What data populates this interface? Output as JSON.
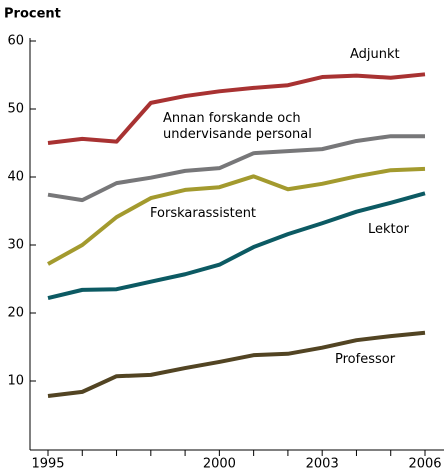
{
  "chart_data": {
    "type": "line",
    "y_label": "Procent",
    "x": [
      1995,
      1996,
      1997,
      1998,
      1999,
      2000,
      2001,
      2002,
      2003,
      2004,
      2005,
      2006
    ],
    "xlim": [
      1995,
      2006
    ],
    "xticks": [
      1995,
      2000,
      2003,
      2006
    ],
    "ylim": [
      0,
      60
    ],
    "yticks": [
      10,
      20,
      30,
      40,
      50,
      60
    ],
    "series": [
      {
        "name": "Adjunkt",
        "color": "#a83232",
        "values": [
          45,
          45.6,
          45.2,
          50.9,
          51.9,
          52.6,
          53.1,
          53.5,
          54.7,
          54.9,
          54.6,
          55.1
        ]
      },
      {
        "name": "Annan forskande och undervisande personal",
        "color": "#777779",
        "values": [
          37.4,
          36.6,
          39.1,
          39.9,
          40.9,
          41.3,
          43.5,
          43.8,
          44.1,
          45.3,
          46,
          46
        ]
      },
      {
        "name": "Forskarassistent",
        "color": "#a39a2e",
        "values": [
          27.2,
          30,
          34.1,
          36.9,
          38.1,
          38.5,
          40.1,
          38.2,
          39,
          40.1,
          41,
          41.2
        ]
      },
      {
        "name": "Lektor",
        "color": "#0c5a63",
        "values": [
          22.2,
          23.4,
          23.5,
          24.6,
          25.7,
          27.1,
          29.7,
          31.6,
          33.2,
          34.9,
          36.2,
          37.6
        ]
      },
      {
        "name": "Professor",
        "color": "#524423",
        "values": [
          7.8,
          8.4,
          10.7,
          10.9,
          11.9,
          12.8,
          13.8,
          14,
          14.9,
          16,
          16.6,
          17.1
        ]
      }
    ]
  }
}
